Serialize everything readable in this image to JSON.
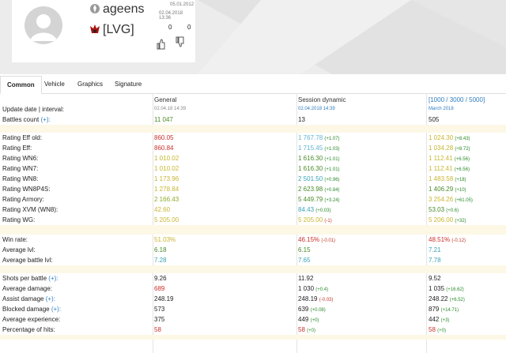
{
  "profile": {
    "player_name": "ageens",
    "clan_tag": "[LVG]",
    "date_registered": "05.01.2012",
    "date_last": "02.04.2018 13:36",
    "likes": "0",
    "dislikes": "0"
  },
  "tabs": [
    "Common",
    "Vehicle",
    "Graphics",
    "Signature"
  ],
  "table": {
    "headers": [
      "General",
      "Session dynamic",
      "[1000 / 3000 / 5000]"
    ],
    "rows": [
      {
        "label": "Update date | interval:",
        "c1": "02.04.18 14:39",
        "c2": "02.04.2018 14:39",
        "c3": "March 2018"
      },
      {
        "label": "Battles count",
        "link": "(+):",
        "c1": "11 047",
        "c2": "13",
        "c3": "505"
      },
      {
        "label": "Rating Eff old:",
        "c1": "860.05",
        "c2": "1 767.78",
        "d2": "(+1.07)",
        "c3": "1 024.30",
        "d3": "(+8.43)"
      },
      {
        "label": "Rating Eff:",
        "c1": "860.84",
        "c2": "1 715.45",
        "d2": "(+1.03)",
        "c3": "1 034.28",
        "d3": "(+8.72)"
      },
      {
        "label": "Rating WN6:",
        "c1": "1 010.02",
        "c2": "1 616.30",
        "d2": "(+1.01)",
        "c3": "1 112.41",
        "d3": "(+6.56)"
      },
      {
        "label": "Rating WN7:",
        "c1": "1 010.02",
        "c2": "1 616.30",
        "d2": "(+1.01)",
        "c3": "1 112.41",
        "d3": "(+6.56)"
      },
      {
        "label": "Rating WN8:",
        "c1": "1 173.96",
        "c2": "2 501.50",
        "d2": "(+0.96)",
        "c3": "1 483.58",
        "d3": "(+18)"
      },
      {
        "label": "Rating WN8P4S:",
        "c1": "1 278.84",
        "c2": "2 623.98",
        "d2": "(+0.84)",
        "c3": "1 406.29",
        "d3": "(+10)"
      },
      {
        "label": "Rating Armory:",
        "c1": "2 166.43",
        "c2": "5 449.79",
        "d2": "(+3.24)",
        "c3": "3 254.26",
        "d3": "(+61.05)"
      },
      {
        "label": "Rating XVM (WN8):",
        "c1": "42.60",
        "c2": "84.43",
        "d2": "(+0.03)",
        "c3": "53.03",
        "d3": "(+0.6)"
      },
      {
        "label": "Rating WG:",
        "c1": "5 205.00",
        "c2": "5 205.00",
        "d2": "(-1)",
        "c3": "5 206.00",
        "d3": "(+32)"
      },
      {
        "label": "Win rate:",
        "c1": "51.03%",
        "c2": "46.15%",
        "d2": "(-0.01)",
        "c3": "48.51%",
        "d3": "(-0.12)"
      },
      {
        "label": "Average lvl:",
        "c1": "6.18",
        "c2": "6.15",
        "c3": "7.21"
      },
      {
        "label": "Average battle lvl:",
        "c1": "7.28",
        "c2": "7.65",
        "c3": "7.78"
      },
      {
        "label": "Shots per battle",
        "link": "(+):",
        "c1": "9.26",
        "c2": "11.92",
        "c3": "9.52"
      },
      {
        "label": "Average damage:",
        "c1": "689",
        "c2": "1 030",
        "d2": "(+0.4)",
        "c3": "1 035",
        "d3": "(+16.62)"
      },
      {
        "label": "Assist damage",
        "link": "(+):",
        "c1": "248.19",
        "c2": "248.19",
        "d2": "(-0.03)",
        "c3": "248.22",
        "d3": "(+6.52)"
      },
      {
        "label": "Blocked damage",
        "link": "(+):",
        "c1": "573",
        "c2": "639",
        "d2": "(+0.08)",
        "c3": "879",
        "d3": "(+14.71)"
      },
      {
        "label": "Average experience:",
        "c1": "375",
        "c2": "449",
        "d2": "(+0)",
        "c3": "442",
        "d3": "(+3)"
      },
      {
        "label": "Percentage of hits:",
        "c1": "58",
        "c2": "58",
        "d2": "(+0)",
        "c3": "58",
        "d3": "(+0)"
      }
    ]
  }
}
